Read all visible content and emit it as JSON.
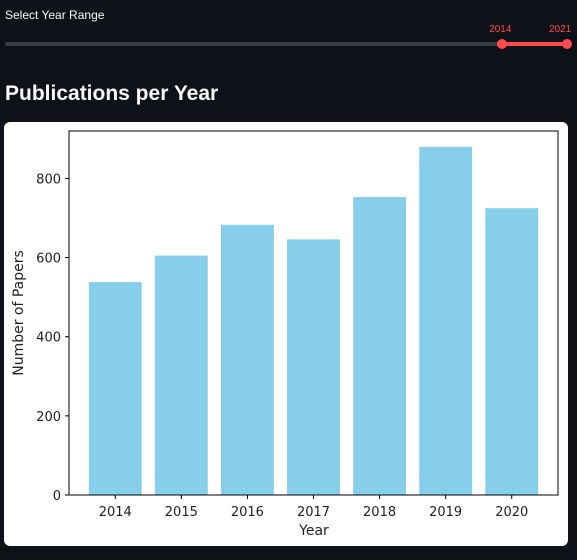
{
  "slider": {
    "label": "Select Year Range",
    "min_label": "2014",
    "max_label": "2021",
    "min_value": 2014,
    "max_value": 2021,
    "range_start_fraction": 0.88,
    "range_end_fraction": 1.0,
    "accent_color": "#ff4b4b"
  },
  "section": {
    "title": "Publications per Year"
  },
  "chart_data": {
    "type": "bar",
    "categories": [
      "2014",
      "2015",
      "2016",
      "2017",
      "2018",
      "2019",
      "2020"
    ],
    "values": [
      538,
      605,
      683,
      646,
      753,
      880,
      725
    ],
    "xlabel": "Year",
    "ylabel": "Number of Papers",
    "ylim": [
      0,
      920
    ],
    "yticks": [
      0,
      200,
      400,
      600,
      800
    ],
    "bar_color": "#87ceeb"
  }
}
